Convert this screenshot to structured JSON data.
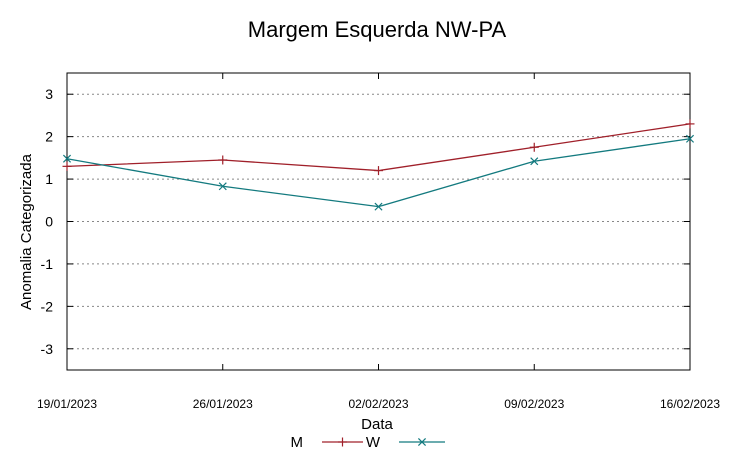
{
  "chart_data": {
    "type": "line",
    "title": "Margem Esquerda NW-PA",
    "xlabel": "Data",
    "ylabel": "Anomalia Categorizada",
    "categories": [
      "19/01/2023",
      "26/01/2023",
      "02/02/2023",
      "09/02/2023",
      "16/02/2023"
    ],
    "ylim": [
      -3.5,
      3.5
    ],
    "yticks": [
      -3,
      -2,
      -1,
      0,
      1,
      2,
      3
    ],
    "grid": true,
    "legend_position": "bottom",
    "series": [
      {
        "name": "M",
        "color": "#a0202a",
        "marker": "plus",
        "values": [
          1.3,
          1.45,
          1.2,
          1.75,
          2.3
        ]
      },
      {
        "name": "W",
        "color": "#137a7f",
        "marker": "x",
        "values": [
          1.48,
          0.83,
          0.35,
          1.42,
          1.95
        ]
      }
    ]
  }
}
